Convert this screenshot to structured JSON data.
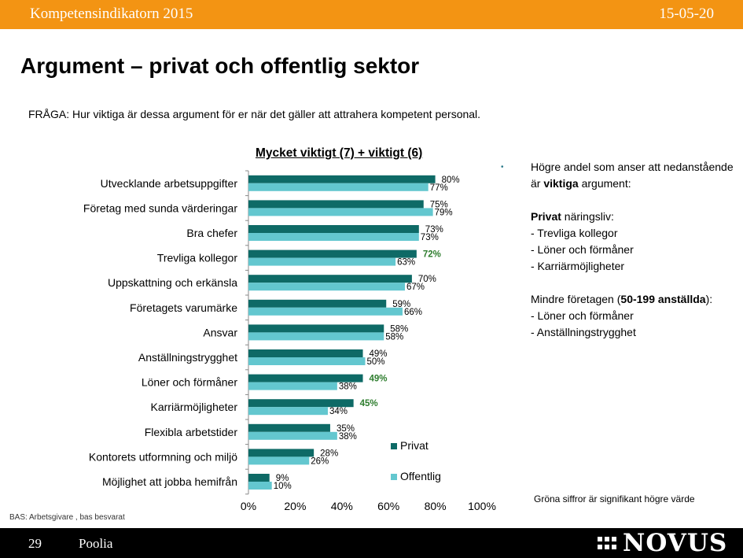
{
  "header": {
    "left": "Kompetensindikatorn 2015",
    "right": "15-05-20"
  },
  "title": "Argument – privat och offentlig sektor",
  "question": "FRÅGA: Hur viktiga är dessa argument för er när det gäller att attrahera kompetent personal.",
  "legend": {
    "privat": "Privat",
    "offentlig": "Offentlig"
  },
  "colors": {
    "privat": "#0e6a66",
    "offentlig": "#63c7cf",
    "significant": "#2e7d2e",
    "orange": "#f39413"
  },
  "chart_data": {
    "type": "bar",
    "orientation": "horizontal",
    "title": "Mycket viktigt (7) + viktigt (6)",
    "categories": [
      "Utvecklande arbetsuppgifter",
      "Företag med sunda värderingar",
      "Bra chefer",
      "Trevliga kollegor",
      "Uppskattning och erkänsla",
      "Företagets varumärke",
      "Ansvar",
      "Anställningstrygghet",
      "Löner och förmåner",
      "Karriärmöjligheter",
      "Flexibla arbetstider",
      "Kontorets utformning och miljö",
      "Möjlighet att jobba hemifrån"
    ],
    "series": [
      {
        "name": "Privat",
        "values": [
          80,
          75,
          73,
          72,
          70,
          59,
          58,
          49,
          49,
          45,
          35,
          28,
          9
        ],
        "labels": [
          "80%",
          "75%",
          "73%",
          "72%",
          "70%",
          "59%",
          "58%",
          "49%",
          "49%",
          "45%",
          "35%",
          "28%",
          "9%"
        ],
        "significant": [
          false,
          false,
          false,
          true,
          false,
          false,
          false,
          false,
          true,
          true,
          false,
          false,
          false
        ]
      },
      {
        "name": "Offentlig",
        "values": [
          77,
          79,
          73,
          63,
          67,
          66,
          58,
          50,
          38,
          34,
          38,
          26,
          10
        ],
        "labels": [
          "77%",
          "79%",
          "73%",
          "63%",
          "67%",
          "66%",
          "58%",
          "50%",
          "38%",
          "34%",
          "38%",
          "26%",
          "10%"
        ]
      }
    ],
    "xlim": [
      0,
      100
    ],
    "xticks": [
      "0%",
      "20%",
      "40%",
      "60%",
      "80%",
      "100%"
    ]
  },
  "notes": {
    "bullet": "•",
    "line1_pre": "Högre andel som anser att nedanstående är ",
    "line1_bold": "viktiga",
    "line1_post": " argument:",
    "privat_bold": "Privat",
    "privat_rest": " näringsliv:",
    "privat_items": [
      "- Trevliga kollegor",
      "- Löner och förmåner",
      "- Karriärmöjligheter"
    ],
    "mindre_pre": "Mindre företagen (",
    "mindre_bold": "50-199 anställda",
    "mindre_post": "):",
    "mindre_items": [
      "- Löner och förmåner",
      "- Anställningstrygghet"
    ]
  },
  "footnote": "Gröna siffror är signifikant högre värde",
  "bas": "BAS: Arbetsgivare , bas besvarat",
  "footer": {
    "page": "29",
    "brand": "Poolia",
    "logo": "NOVUS"
  }
}
